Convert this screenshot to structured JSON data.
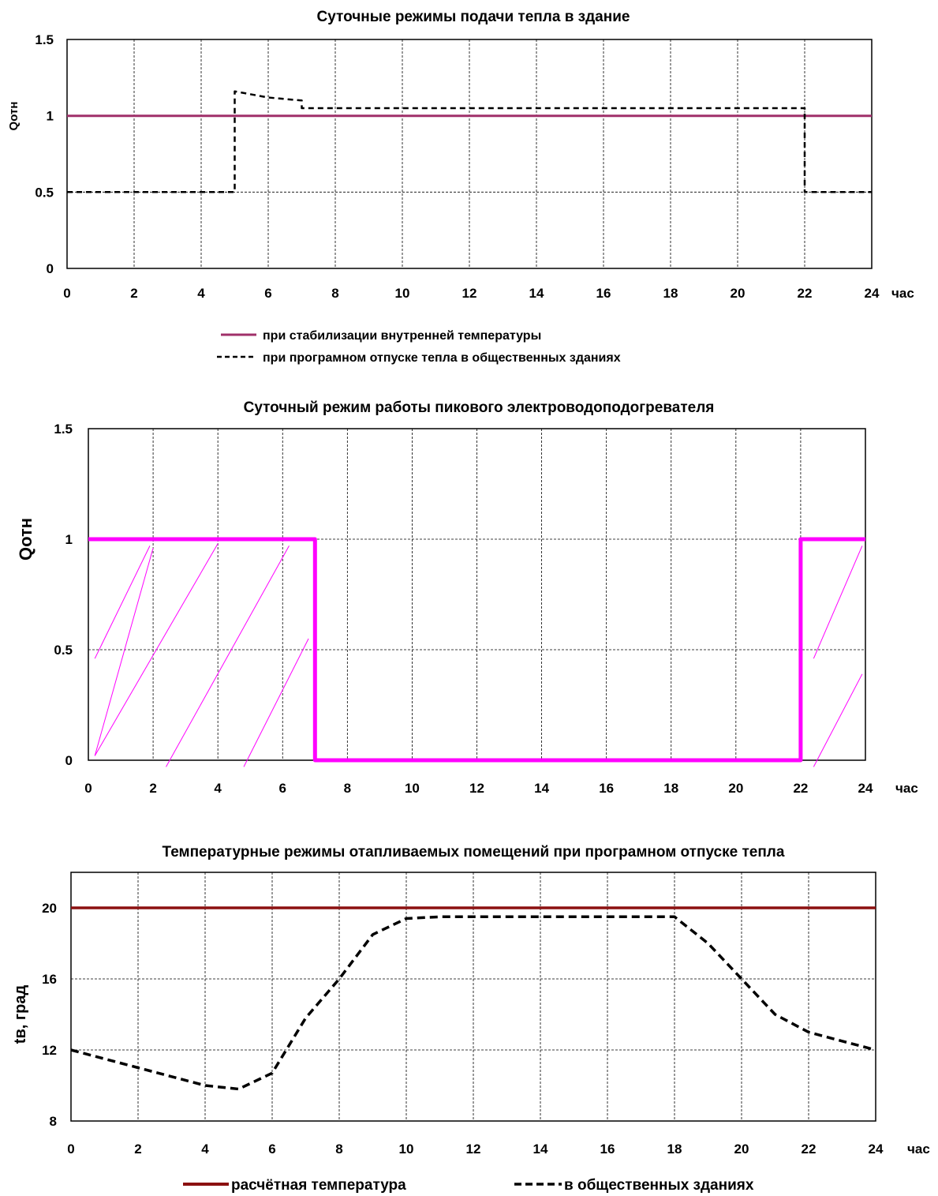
{
  "chart_data": [
    {
      "type": "line",
      "title": "Суточные режимы подачи тепла в здание",
      "xlabel": "час",
      "ylabel": "Qотн",
      "xlim": [
        0,
        24
      ],
      "ylim": [
        0,
        1.5
      ],
      "x_ticks": [
        "0",
        "2",
        "4",
        "6",
        "8",
        "10",
        "12",
        "14",
        "16",
        "18",
        "20",
        "22",
        "24"
      ],
      "y_ticks": [
        "0",
        "0.5",
        "1",
        "1.5"
      ],
      "grid": true,
      "legend_position": "bottom",
      "series": [
        {
          "name": "при стабилизации внутренней температуры",
          "color": "#a0306a",
          "style": "solid",
          "x": [
            0,
            24
          ],
          "y": [
            1,
            1
          ]
        },
        {
          "name": "при програмном отпуске тепла в общественных зданиях",
          "color": "#000000",
          "style": "dashed",
          "x": [
            0,
            5,
            5,
            6,
            7,
            7,
            22,
            22,
            24
          ],
          "y": [
            0.5,
            0.5,
            1.16,
            1.12,
            1.1,
            1.05,
            1.05,
            0.5,
            0.5
          ]
        }
      ]
    },
    {
      "type": "line",
      "title": "Суточный режим работы пикового электроводоподогревателя",
      "xlabel": "час",
      "ylabel": "Qотн",
      "xlim": [
        0,
        24
      ],
      "ylim": [
        0,
        1.5
      ],
      "x_ticks": [
        "0",
        "2",
        "4",
        "6",
        "8",
        "10",
        "12",
        "14",
        "16",
        "18",
        "20",
        "22",
        "24"
      ],
      "y_ticks": [
        "0",
        "0.5",
        "1",
        "1.5"
      ],
      "grid": true,
      "hatched_regions": [
        [
          0,
          7
        ],
        [
          22,
          24
        ]
      ],
      "series": [
        {
          "color": "#ff00ff",
          "style": "solid",
          "x": [
            0,
            7,
            7,
            22,
            22,
            24
          ],
          "y": [
            1,
            1,
            0,
            0,
            1,
            1
          ]
        }
      ]
    },
    {
      "type": "line",
      "title": "Температурные режимы отапливаемых помещений при програмном отпуске тепла",
      "xlabel": "час",
      "ylabel": "tв, град",
      "xlim": [
        0,
        24
      ],
      "ylim": [
        8,
        22
      ],
      "x_ticks": [
        "0",
        "2",
        "4",
        "6",
        "8",
        "10",
        "12",
        "14",
        "16",
        "18",
        "20",
        "22",
        "24"
      ],
      "y_ticks": [
        "8",
        "12",
        "16",
        "20"
      ],
      "grid": true,
      "legend_position": "bottom",
      "series": [
        {
          "name": "расчётная температура",
          "color": "#8b1010",
          "style": "solid",
          "x": [
            0,
            24
          ],
          "y": [
            20,
            20
          ]
        },
        {
          "name": "в общественных зданиях",
          "color": "#000000",
          "style": "dashed",
          "x": [
            0,
            2,
            4,
            5,
            6,
            7,
            8,
            9,
            10,
            11,
            12,
            14,
            16,
            18,
            19,
            20,
            21,
            22,
            23,
            24
          ],
          "y": [
            12,
            11,
            10,
            9.8,
            10.7,
            13.8,
            16,
            18.5,
            19.4,
            19.5,
            19.5,
            19.5,
            19.5,
            19.5,
            18,
            16,
            14,
            13,
            12.5,
            12
          ]
        }
      ]
    }
  ]
}
